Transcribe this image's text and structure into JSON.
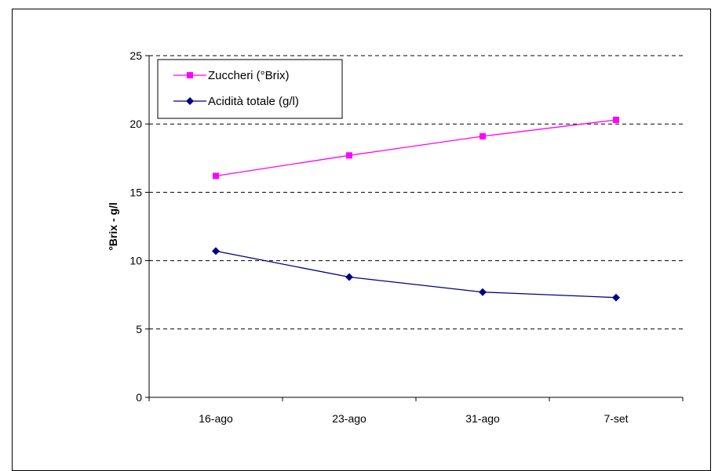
{
  "chart_data": {
    "type": "line",
    "categories": [
      "16-ago",
      "23-ago",
      "31-ago",
      "7-set"
    ],
    "series": [
      {
        "name": "Zuccheri (°Brix)",
        "values": [
          16.2,
          17.7,
          19.1,
          20.3
        ],
        "color": "#ff00ff",
        "marker": "square"
      },
      {
        "name": "Acidità totale (g/l)",
        "values": [
          10.7,
          8.8,
          7.7,
          7.3
        ],
        "color": "#000080",
        "marker": "diamond"
      }
    ],
    "title": "",
    "xlabel": "",
    "ylabel": "°Brix - g/l",
    "ylim": [
      0,
      25
    ],
    "yticks": [
      0,
      5,
      10,
      15,
      20,
      25
    ],
    "grid": "horizontal dashed",
    "legend_position": "top-left"
  }
}
